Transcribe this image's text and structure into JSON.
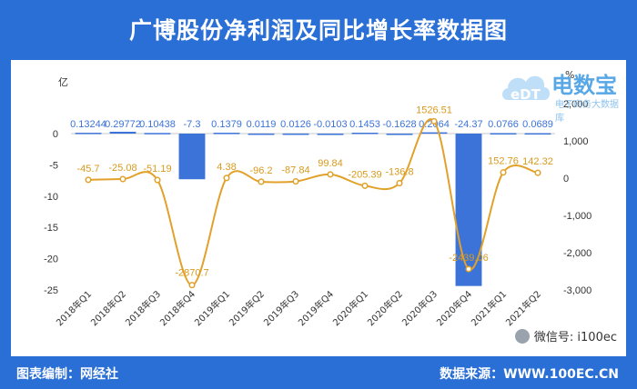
{
  "header": {
    "title": "广博股份净利润及同比增长率数据图"
  },
  "footer": {
    "left": "图表编制：网经社",
    "right": "数据来源：WWW.100EC.CN"
  },
  "watermark": {
    "wechat": "微信号: i100ec",
    "logo_main": "电数宝",
    "logo_sub": "电子商务大数据库"
  },
  "colors": {
    "bar": "#3b73d9",
    "line": "#e1a12a",
    "label": "#3b73d9",
    "line_label": "#d89a1d",
    "background": "#2a6fd6"
  },
  "chart_data": {
    "type": "bar+line",
    "categories": [
      "2018年Q1",
      "2018年Q2",
      "2018年Q3",
      "2018年Q4",
      "2019年Q1",
      "2019年Q2",
      "2019年Q3",
      "2019年Q4",
      "2020年Q1",
      "2020年Q2",
      "2020年Q3",
      "2020年Q4",
      "2021年Q1",
      "2021年Q2"
    ],
    "bar_labels": [
      "0.13244",
      "0.29772",
      "0.10438",
      "-7.3",
      "0.1379",
      "0.0119",
      "0.0126",
      "-0.0103",
      "0.1453",
      "-0.1628",
      "0.2064",
      "-24.37",
      "0.0766",
      "0.0689"
    ],
    "bar_values": [
      0.13244,
      0.29772,
      0.10438,
      -7.3,
      0.1379,
      0.0119,
      0.0126,
      -0.0103,
      0.1453,
      -0.1628,
      0.2064,
      -24.37,
      0.0766,
      0.0689
    ],
    "line_labels": [
      "-45.7",
      "-25.08",
      "-51.19",
      "-2870.7",
      "4.38",
      "-96.2",
      "-87.84",
      "99.84",
      "-205.39",
      "-136.8",
      "1526.51",
      "-2439.06",
      "152.76",
      "142.32"
    ],
    "line_values": [
      -45.7,
      -25.08,
      -51.19,
      -2870.7,
      4.38,
      -96.2,
      -87.84,
      99.84,
      -205.39,
      -136.8,
      1526.51,
      -2439.06,
      152.76,
      142.32
    ],
    "left_axis": {
      "unit": "亿",
      "min": -25,
      "max": 0,
      "ticks": [
        "0",
        "-5",
        "-10",
        "-15",
        "-20",
        "-25"
      ],
      "tick_values": [
        0,
        -5,
        -10,
        -15,
        -20,
        -25
      ]
    },
    "right_axis": {
      "unit": "%",
      "min": -3000,
      "max": 2000,
      "ticks": [
        "2,000",
        "1,000",
        "0",
        "-1,000",
        "-2,000",
        "-3,000"
      ],
      "tick_values": [
        2000,
        1000,
        0,
        -1000,
        -2000,
        -3000
      ]
    },
    "grid": false,
    "legend": "none"
  }
}
